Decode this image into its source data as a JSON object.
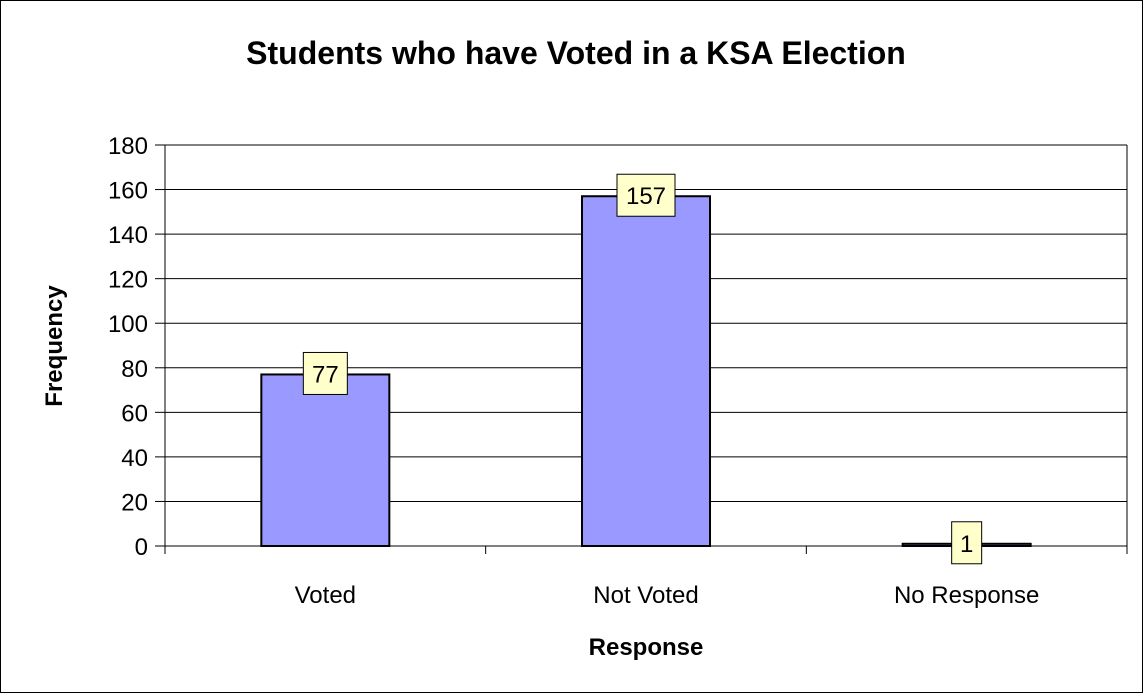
{
  "chart_data": {
    "type": "bar",
    "title": "Students who have Voted in a KSA Election",
    "xlabel": "Response",
    "ylabel": "Frequency",
    "categories": [
      "Voted",
      "Not Voted",
      "No Response"
    ],
    "values": [
      77,
      157,
      1
    ],
    "data_labels": [
      "77",
      "157",
      "1"
    ],
    "ylim": [
      0,
      180
    ],
    "yticks": [
      0,
      20,
      40,
      60,
      80,
      100,
      120,
      140,
      160,
      180
    ],
    "ytick_labels": [
      "0",
      "20",
      "40",
      "60",
      "80",
      "100",
      "120",
      "140",
      "160",
      "180"
    ],
    "grid": true,
    "legend": false,
    "colors": {
      "bar_fill": "#9999ff",
      "bar_stroke": "#000000",
      "label_box_fill": "#ffffcc",
      "grid": "#000000"
    }
  }
}
